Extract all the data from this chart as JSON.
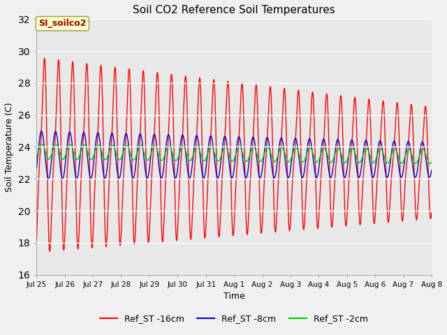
{
  "title": "Soil CO2 Reference Soil Temperatures",
  "xlabel": "Time",
  "ylabel": "Soil Temperature (C)",
  "ylim": [
    16,
    32
  ],
  "yticks": [
    16,
    18,
    20,
    22,
    24,
    26,
    28,
    30,
    32
  ],
  "fig_facecolor": "#f0f0f0",
  "plot_bg_color": "#e8e8e8",
  "label_box_text": "SI_soilco2",
  "label_box_color": "#ffffcc",
  "label_box_text_color": "#990000",
  "series": {
    "Ref_ST -16cm": {
      "color": "#ff0000",
      "linewidth": 1.0
    },
    "Ref_ST -8cm": {
      "color": "#0000cc",
      "linewidth": 1.0
    },
    "Ref_ST -2cm": {
      "color": "#00cc00",
      "linewidth": 1.0
    }
  },
  "x_tick_labels": [
    "Jul 25",
    "Jul 26",
    "Jul 27",
    "Jul 28",
    "Jul 29",
    "Jul 30",
    "Jul 31",
    "Aug 1",
    "Aug 2",
    "Aug 3",
    "Aug 4",
    "Aug 5",
    "Aug 6",
    "Aug 7",
    "Aug 8"
  ],
  "n_points": 2016,
  "duration_days": 14
}
